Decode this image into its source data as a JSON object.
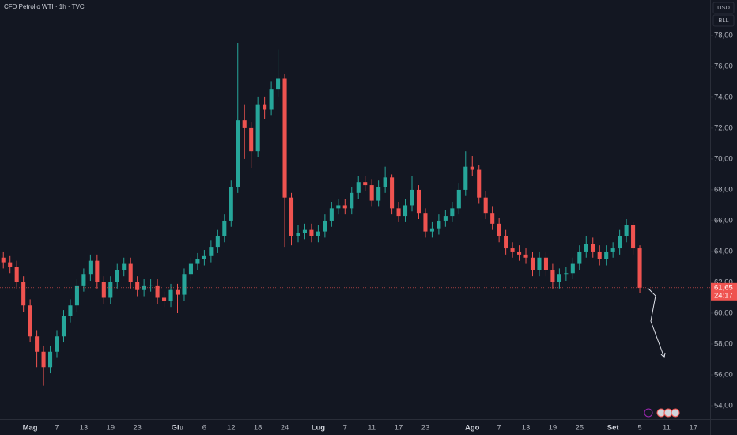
{
  "chart_data": {
    "type": "candlestick",
    "title": "CFD Petrolio WTI · 1h · TVC",
    "currency": "USD",
    "unit": "BLL",
    "up_color": "#26a69a",
    "down_color": "#ef5350",
    "categories": [
      null,
      null,
      null,
      null,
      "Mag",
      null,
      null,
      null,
      "7",
      null,
      null,
      null,
      "13",
      null,
      null,
      null,
      "19",
      null,
      null,
      null,
      "23",
      null,
      null,
      null,
      null,
      null,
      "Giu",
      null,
      null,
      null,
      "6",
      null,
      null,
      null,
      "12",
      null,
      null,
      null,
      "18",
      null,
      null,
      null,
      "24",
      null,
      null,
      null,
      null,
      "Lug",
      null,
      null,
      null,
      "7",
      null,
      null,
      null,
      "11",
      null,
      null,
      null,
      "17",
      null,
      null,
      null,
      "23",
      null,
      null,
      null,
      null,
      null,
      null,
      "Ago",
      null,
      null,
      null,
      "7",
      null,
      null,
      null,
      "13",
      null,
      null,
      null,
      "19",
      null,
      null,
      null,
      "25",
      null,
      null,
      null,
      null,
      "Set",
      null,
      null,
      null,
      "5",
      null,
      null,
      null,
      "11",
      null,
      null,
      null,
      "17",
      null,
      null
    ],
    "open": [
      63.6,
      63.3,
      63.0,
      62.0,
      60.5,
      58.5,
      57.5,
      56.5,
      57.5,
      58.5,
      59.8,
      60.5,
      61.8,
      62.5,
      63.4,
      62.0,
      61.0,
      62.0,
      62.8,
      63.2,
      62.0,
      61.5,
      61.8,
      61.8,
      61.0,
      60.8,
      61.5,
      61.2,
      62.5,
      63.2,
      63.5,
      63.7,
      64.3,
      65.0,
      66.0,
      68.2,
      72.5,
      72.0,
      70.5,
      73.5,
      73.2,
      74.5,
      75.2,
      67.5,
      65.0,
      65.2,
      65.4,
      65.0,
      65.3,
      66.0,
      66.8,
      67.0,
      66.8,
      67.8,
      68.5,
      68.3,
      67.3,
      68.2,
      68.8,
      66.8,
      66.3,
      67.0,
      68.0,
      66.5,
      65.3,
      65.5,
      66.0,
      66.3,
      66.8,
      68.0,
      69.5,
      69.3,
      67.5,
      66.5,
      65.8,
      65.0,
      64.2,
      64.0,
      63.8,
      63.6,
      62.8,
      63.6,
      62.8,
      62.0,
      62.5,
      62.6,
      63.2,
      64.0,
      64.5,
      64.0,
      63.5,
      64.0,
      64.2,
      65.0,
      65.7,
      64.2,
      null,
      null,
      null,
      null,
      null,
      null,
      null,
      null,
      null,
      null
    ],
    "high": [
      64.0,
      63.7,
      63.4,
      62.4,
      60.9,
      58.9,
      57.9,
      57.9,
      58.9,
      60.2,
      60.9,
      62.2,
      62.9,
      63.8,
      63.8,
      62.4,
      62.4,
      63.2,
      63.6,
      63.6,
      62.4,
      62.2,
      62.2,
      62.2,
      61.4,
      61.9,
      61.9,
      62.9,
      63.6,
      63.9,
      64.1,
      64.7,
      65.4,
      66.4,
      68.6,
      77.5,
      73.5,
      72.4,
      74.0,
      74.0,
      75.0,
      77.1,
      75.5,
      67.8,
      65.7,
      65.8,
      65.8,
      65.7,
      66.4,
      67.2,
      67.4,
      67.4,
      68.2,
      68.9,
      68.9,
      68.7,
      68.6,
      69.5,
      69.0,
      67.2,
      67.4,
      68.9,
      68.3,
      66.8,
      65.9,
      66.4,
      66.7,
      67.2,
      68.4,
      70.5,
      70.2,
      69.6,
      67.9,
      66.9,
      66.2,
      65.4,
      64.6,
      64.4,
      64.2,
      64.0,
      64.0,
      64.0,
      63.2,
      62.9,
      63.0,
      63.6,
      64.4,
      65.0,
      64.9,
      64.4,
      64.4,
      64.6,
      65.4,
      66.1,
      65.9,
      64.4,
      null,
      null,
      null,
      null,
      null,
      null,
      null,
      null,
      null,
      null
    ],
    "low": [
      62.9,
      62.6,
      61.6,
      60.1,
      58.1,
      56.5,
      55.3,
      56.1,
      57.1,
      58.1,
      59.4,
      60.1,
      61.4,
      62.1,
      61.6,
      60.6,
      60.6,
      61.6,
      62.4,
      61.6,
      61.1,
      61.1,
      61.4,
      60.6,
      60.4,
      60.4,
      60.0,
      60.8,
      62.1,
      62.8,
      63.1,
      63.3,
      63.9,
      64.6,
      65.6,
      67.8,
      70.0,
      69.4,
      70.1,
      72.6,
      72.8,
      74.0,
      64.3,
      64.4,
      64.6,
      64.8,
      64.6,
      64.6,
      64.9,
      65.6,
      66.4,
      66.4,
      66.4,
      67.4,
      67.9,
      66.9,
      66.9,
      67.8,
      66.4,
      65.9,
      65.9,
      66.6,
      66.1,
      64.9,
      64.9,
      65.1,
      65.6,
      65.9,
      66.4,
      67.6,
      68.9,
      67.1,
      66.1,
      65.4,
      64.6,
      63.8,
      63.6,
      63.4,
      63.2,
      62.4,
      62.4,
      62.4,
      61.6,
      61.6,
      62.1,
      62.2,
      62.8,
      63.6,
      63.6,
      63.1,
      63.1,
      63.6,
      63.8,
      64.6,
      63.8,
      61.3,
      null,
      null,
      null,
      null,
      null,
      null,
      null,
      null,
      null,
      null
    ],
    "close": [
      63.3,
      63.0,
      62.0,
      60.5,
      58.5,
      57.5,
      56.5,
      57.5,
      58.5,
      59.8,
      60.5,
      61.8,
      62.5,
      63.4,
      62.0,
      61.0,
      62.0,
      62.8,
      63.2,
      62.0,
      61.5,
      61.8,
      61.8,
      61.0,
      60.8,
      61.5,
      61.2,
      62.5,
      63.2,
      63.5,
      63.7,
      64.3,
      65.0,
      66.0,
      68.2,
      72.5,
      72.0,
      70.5,
      73.5,
      73.2,
      74.5,
      75.2,
      67.5,
      65.0,
      65.2,
      65.4,
      65.0,
      65.3,
      66.0,
      66.8,
      67.0,
      66.8,
      67.8,
      68.5,
      68.3,
      67.3,
      68.2,
      68.8,
      66.8,
      66.3,
      67.0,
      68.0,
      66.5,
      65.3,
      65.5,
      66.0,
      66.3,
      66.8,
      68.0,
      69.5,
      69.3,
      67.5,
      66.5,
      65.8,
      65.0,
      64.2,
      64.0,
      63.8,
      63.6,
      62.8,
      63.6,
      62.8,
      62.0,
      62.5,
      62.6,
      63.2,
      64.0,
      64.5,
      64.0,
      63.5,
      64.0,
      64.2,
      65.0,
      65.7,
      64.2,
      61.65,
      null,
      null,
      null,
      null,
      null,
      null,
      null,
      null,
      null,
      null
    ],
    "ylim": [
      53.13,
      80.3
    ],
    "yticks": [
      {
        "value": 54,
        "label": "54,00"
      },
      {
        "value": 56,
        "label": "56,00"
      },
      {
        "value": 58,
        "label": "58,00"
      },
      {
        "value": 60,
        "label": "60,00"
      },
      {
        "value": 62,
        "label": "62,00"
      },
      {
        "value": 64,
        "label": "64,00"
      },
      {
        "value": 66,
        "label": "66,00"
      },
      {
        "value": 68,
        "label": "68,00"
      },
      {
        "value": 70,
        "label": "70,00"
      },
      {
        "value": 72,
        "label": "72,00"
      },
      {
        "value": 74,
        "label": "74,00"
      },
      {
        "value": 76,
        "label": "76,00"
      },
      {
        "value": 78,
        "label": "78,00"
      }
    ],
    "last_price": {
      "value": 61.65,
      "label": "61,65"
    },
    "countdown": "24:17"
  }
}
